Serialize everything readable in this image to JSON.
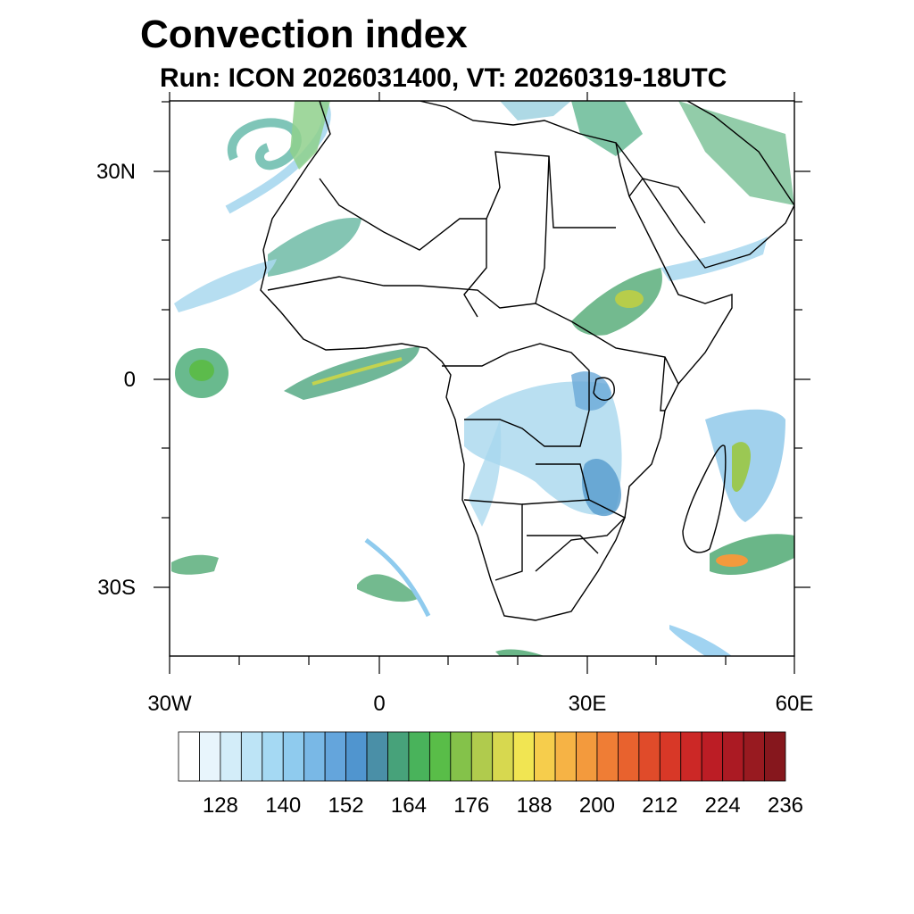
{
  "title": "Convection index",
  "subtitle": "Run: ICON 2026031400,  VT: 20260319-18UTC",
  "map": {
    "region": "Africa",
    "lon_range": [
      -30,
      60
    ],
    "lat_range": [
      -40,
      40
    ],
    "lat_ticks": [
      {
        "value": 30,
        "label": "30N"
      },
      {
        "value": 0,
        "label": "0"
      },
      {
        "value": -30,
        "label": "30S"
      }
    ],
    "lon_ticks": [
      {
        "value": -30,
        "label": "30W"
      },
      {
        "value": 0,
        "label": "0"
      },
      {
        "value": 30,
        "label": "30E"
      },
      {
        "value": 60,
        "label": "60E"
      }
    ]
  },
  "colorbar": {
    "levels": [
      128,
      140,
      152,
      164,
      176,
      188,
      200,
      212,
      224,
      236
    ],
    "labels": [
      "128",
      "140",
      "152",
      "164",
      "176",
      "188",
      "200",
      "212",
      "224",
      "236"
    ],
    "colors": [
      "#ffffff",
      "#e8f5fc",
      "#d3edf9",
      "#bde4f6",
      "#a5d9f3",
      "#8fcbee",
      "#79b8e6",
      "#64a5dc",
      "#5095cf",
      "#4a8fa7",
      "#47a27a",
      "#49b35b",
      "#59bd48",
      "#84c24a",
      "#b0cb4d",
      "#d7d84f",
      "#f1e552",
      "#f6cd4c",
      "#f6b345",
      "#f39a3d",
      "#ef7d35",
      "#e8622e",
      "#e04b2a",
      "#d83827",
      "#cc2826",
      "#bc1d25",
      "#ab1a23",
      "#981a20",
      "#86171d"
    ]
  }
}
